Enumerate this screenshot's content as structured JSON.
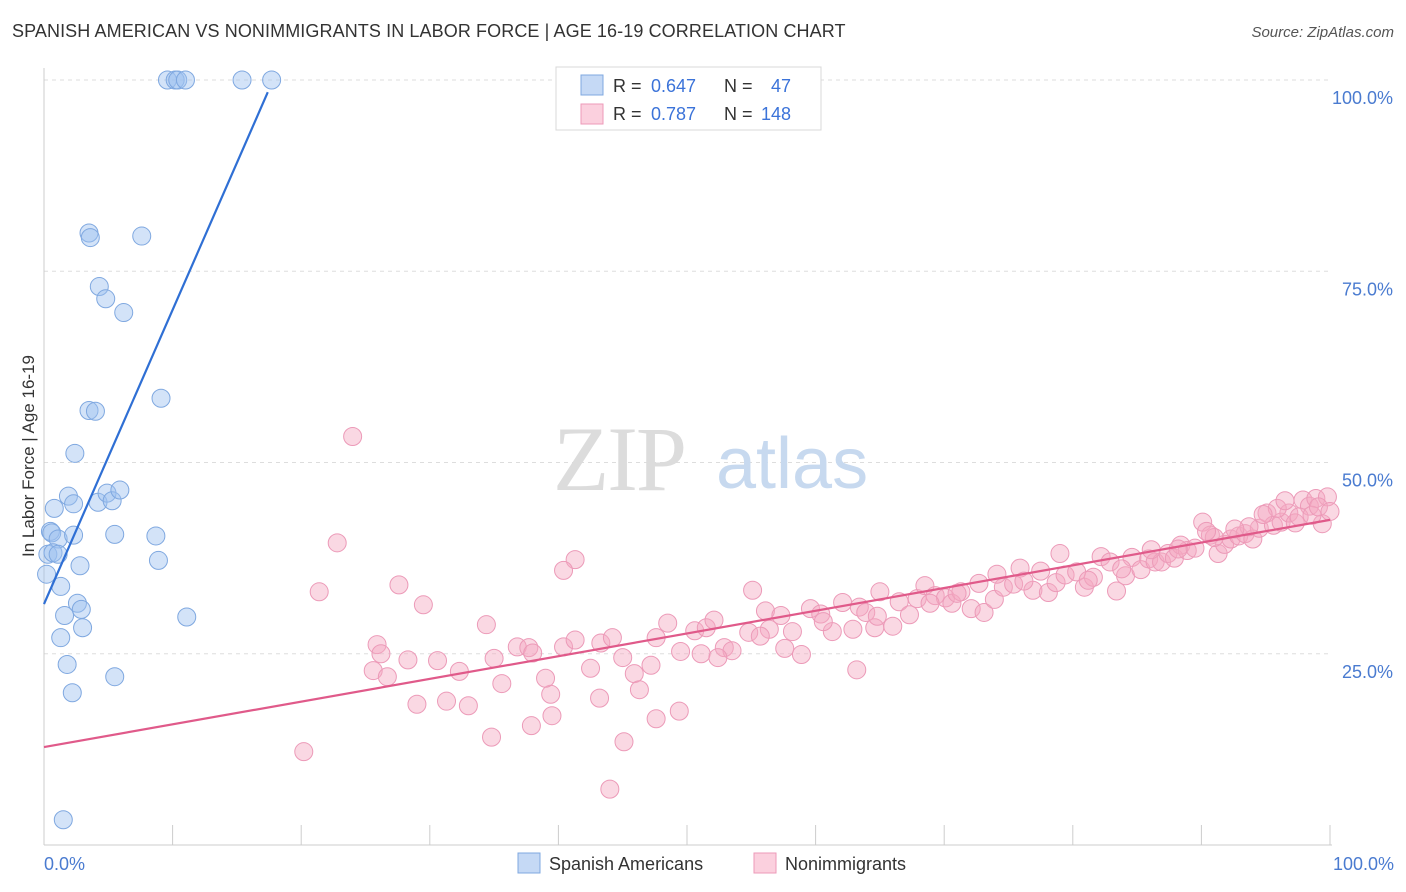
{
  "title": "SPANISH AMERICAN VS NONIMMIGRANTS IN LABOR FORCE | AGE 16-19 CORRELATION CHART",
  "source": "Source: ZipAtlas.com",
  "watermark": {
    "zip": "ZIP",
    "atlas": "atlas"
  },
  "stats": [
    {
      "r_label": "R =",
      "r": "0.647",
      "n_label": "N =",
      "n": "47",
      "color": "#9dc0ef"
    },
    {
      "r_label": "R =",
      "r": "0.787",
      "n_label": "N =",
      "n": "148",
      "color": "#f4a9c2"
    }
  ],
  "chart_data": {
    "type": "scatter",
    "ylabel": "In Labor Force | Age 16-19",
    "xlabel": "",
    "xlim": [
      0,
      100
    ],
    "ylim": [
      0,
      100
    ],
    "x_tick_labels": [
      "0.0%",
      "100.0%"
    ],
    "y_tick_labels": [
      "25.0%",
      "50.0%",
      "75.0%",
      "100.0%"
    ],
    "y_ticks": [
      25,
      50,
      75,
      100
    ],
    "grid": "horizontal dashed",
    "legend_position": "bottom-center",
    "series": [
      {
        "name": "Spanish Americans",
        "color": "#9dc0ef",
        "line_color": "#2f6fd4",
        "trend": [
          [
            0,
            31.5
          ],
          [
            17.4,
            98.4
          ]
        ],
        "points": [
          [
            9.6,
            100
          ],
          [
            10.2,
            100
          ],
          [
            10.4,
            100
          ],
          [
            11.0,
            100
          ],
          [
            15.4,
            100
          ],
          [
            17.7,
            100
          ],
          [
            3.5,
            80
          ],
          [
            3.6,
            79.4
          ],
          [
            7.6,
            79.6
          ],
          [
            4.3,
            73
          ],
          [
            4.8,
            71.4
          ],
          [
            6.2,
            69.6
          ],
          [
            9.1,
            58.4
          ],
          [
            3.5,
            56.8
          ],
          [
            4.0,
            56.7
          ],
          [
            2.4,
            51.2
          ],
          [
            1.9,
            45.6
          ],
          [
            0.8,
            44
          ],
          [
            4.2,
            44.8
          ],
          [
            4.9,
            46
          ],
          [
            5.3,
            45
          ],
          [
            5.9,
            46.4
          ],
          [
            2.3,
            44.6
          ],
          [
            0.5,
            41.0
          ],
          [
            0.6,
            40.8
          ],
          [
            1.1,
            40.0
          ],
          [
            2.3,
            40.5
          ],
          [
            5.5,
            40.6
          ],
          [
            8.7,
            40.4
          ],
          [
            0.3,
            38.0
          ],
          [
            0.7,
            38.2
          ],
          [
            1.1,
            38.0
          ],
          [
            2.8,
            36.5
          ],
          [
            8.9,
            37.2
          ],
          [
            0.2,
            35.4
          ],
          [
            1.3,
            33.8
          ],
          [
            2.6,
            31.6
          ],
          [
            2.9,
            30.8
          ],
          [
            1.6,
            30.0
          ],
          [
            11.1,
            29.8
          ],
          [
            3.0,
            28.4
          ],
          [
            1.3,
            27.1
          ],
          [
            1.8,
            23.6
          ],
          [
            5.5,
            22.0
          ],
          [
            2.2,
            19.9
          ],
          [
            1.5,
            3.3
          ]
        ]
      },
      {
        "name": "Nonimmigrants",
        "color": "#f4a9c2",
        "line_color": "#e05a8a",
        "trend": [
          [
            0,
            12.8
          ],
          [
            100,
            42.5
          ]
        ],
        "points": [
          [
            24.0,
            53.4
          ],
          [
            22.8,
            39.5
          ],
          [
            21.4,
            33.1
          ],
          [
            27.6,
            34.0
          ],
          [
            29.5,
            31.4
          ],
          [
            41.3,
            37.3
          ],
          [
            40.4,
            35.9
          ],
          [
            25.9,
            26.2
          ],
          [
            26.2,
            25.0
          ],
          [
            25.6,
            22.8
          ],
          [
            26.7,
            22.0
          ],
          [
            28.3,
            24.2
          ],
          [
            30.6,
            24.1
          ],
          [
            29.0,
            18.4
          ],
          [
            31.3,
            18.8
          ],
          [
            33.0,
            18.2
          ],
          [
            32.3,
            22.7
          ],
          [
            35.0,
            24.4
          ],
          [
            35.6,
            21.1
          ],
          [
            36.8,
            25.9
          ],
          [
            37.7,
            25.8
          ],
          [
            38.0,
            25.1
          ],
          [
            39.4,
            19.7
          ],
          [
            39.0,
            21.8
          ],
          [
            34.4,
            28.8
          ],
          [
            34.8,
            14.1
          ],
          [
            37.9,
            15.6
          ],
          [
            39.5,
            16.9
          ],
          [
            40.4,
            25.9
          ],
          [
            41.3,
            26.8
          ],
          [
            43.3,
            26.4
          ],
          [
            42.5,
            23.1
          ],
          [
            44.2,
            27.1
          ],
          [
            45.9,
            22.4
          ],
          [
            45.0,
            24.5
          ],
          [
            46.3,
            20.3
          ],
          [
            47.2,
            23.5
          ],
          [
            47.6,
            27.1
          ],
          [
            48.5,
            29.0
          ],
          [
            49.5,
            25.3
          ],
          [
            50.6,
            28.0
          ],
          [
            51.1,
            25.0
          ],
          [
            51.5,
            28.4
          ],
          [
            52.1,
            29.4
          ],
          [
            52.9,
            25.8
          ],
          [
            53.5,
            25.4
          ],
          [
            54.8,
            27.8
          ],
          [
            55.1,
            33.3
          ],
          [
            56.1,
            30.6
          ],
          [
            56.4,
            28.2
          ],
          [
            57.3,
            30.0
          ],
          [
            58.2,
            27.9
          ],
          [
            58.9,
            24.9
          ],
          [
            59.6,
            30.9
          ],
          [
            60.4,
            30.2
          ],
          [
            61.3,
            27.9
          ],
          [
            62.1,
            31.7
          ],
          [
            62.9,
            28.2
          ],
          [
            63.4,
            31.1
          ],
          [
            63.9,
            30.4
          ],
          [
            64.6,
            28.4
          ],
          [
            65.0,
            33.1
          ],
          [
            66.0,
            28.6
          ],
          [
            66.5,
            31.8
          ],
          [
            67.3,
            30.1
          ],
          [
            67.9,
            32.2
          ],
          [
            68.5,
            33.9
          ],
          [
            69.3,
            32.6
          ],
          [
            70.1,
            32.3
          ],
          [
            70.6,
            31.6
          ],
          [
            71.3,
            33.1
          ],
          [
            72.1,
            30.9
          ],
          [
            72.7,
            34.2
          ],
          [
            73.1,
            30.4
          ],
          [
            73.9,
            32.1
          ],
          [
            74.6,
            33.7
          ],
          [
            75.4,
            34.1
          ],
          [
            75.9,
            36.2
          ],
          [
            76.9,
            33.3
          ],
          [
            77.5,
            35.8
          ],
          [
            78.1,
            33.0
          ],
          [
            78.7,
            34.3
          ],
          [
            79.4,
            35.3
          ],
          [
            80.3,
            35.7
          ],
          [
            80.9,
            33.7
          ],
          [
            81.6,
            35.0
          ],
          [
            82.2,
            37.7
          ],
          [
            82.9,
            37.0
          ],
          [
            83.4,
            33.2
          ],
          [
            84.1,
            35.2
          ],
          [
            84.6,
            37.6
          ],
          [
            85.3,
            36.0
          ],
          [
            85.9,
            37.4
          ],
          [
            86.4,
            37.0
          ],
          [
            86.9,
            37.0
          ],
          [
            87.4,
            38.1
          ],
          [
            87.9,
            37.5
          ],
          [
            88.4,
            39.2
          ],
          [
            88.9,
            38.5
          ],
          [
            89.5,
            38.8
          ],
          [
            90.1,
            42.2
          ],
          [
            90.7,
            40.5
          ],
          [
            91.3,
            38.1
          ],
          [
            91.8,
            39.3
          ],
          [
            92.3,
            40.0
          ],
          [
            92.9,
            40.4
          ],
          [
            93.4,
            40.7
          ],
          [
            94.0,
            40.0
          ],
          [
            94.5,
            41.4
          ],
          [
            95.1,
            43.4
          ],
          [
            95.6,
            41.8
          ],
          [
            96.2,
            42.2
          ],
          [
            96.8,
            43.4
          ],
          [
            97.3,
            42.1
          ],
          [
            97.9,
            45.1
          ],
          [
            98.4,
            44.3
          ],
          [
            98.9,
            45.3
          ],
          [
            99.4,
            42.0
          ],
          [
            99.8,
            45.5
          ],
          [
            20.2,
            12.2
          ],
          [
            44.0,
            7.3
          ],
          [
            45.1,
            13.5
          ],
          [
            49.4,
            17.5
          ],
          [
            47.6,
            16.5
          ],
          [
            43.2,
            19.2
          ],
          [
            63.2,
            22.9
          ],
          [
            57.6,
            25.7
          ],
          [
            52.4,
            24.5
          ],
          [
            55.7,
            27.3
          ],
          [
            60.6,
            29.2
          ],
          [
            64.8,
            29.9
          ],
          [
            68.9,
            31.6
          ],
          [
            71.0,
            32.9
          ],
          [
            74.1,
            35.4
          ],
          [
            76.2,
            34.5
          ],
          [
            79.0,
            38.1
          ],
          [
            81.2,
            34.6
          ],
          [
            83.8,
            36.1
          ],
          [
            86.1,
            38.6
          ],
          [
            88.2,
            38.7
          ],
          [
            91.0,
            40.2
          ],
          [
            93.7,
            41.6
          ],
          [
            95.9,
            44.0
          ],
          [
            97.6,
            42.9
          ],
          [
            98.6,
            43.1
          ],
          [
            99.1,
            44.2
          ],
          [
            100.0,
            43.6
          ],
          [
            96.5,
            45.0
          ],
          [
            94.8,
            43.2
          ],
          [
            92.6,
            41.3
          ],
          [
            90.4,
            41.0
          ]
        ]
      }
    ]
  },
  "legend": {
    "items": [
      {
        "label": "Spanish Americans",
        "color": "#9dc0ef"
      },
      {
        "label": "Nonimmigrants",
        "color": "#f4a9c2"
      }
    ]
  }
}
